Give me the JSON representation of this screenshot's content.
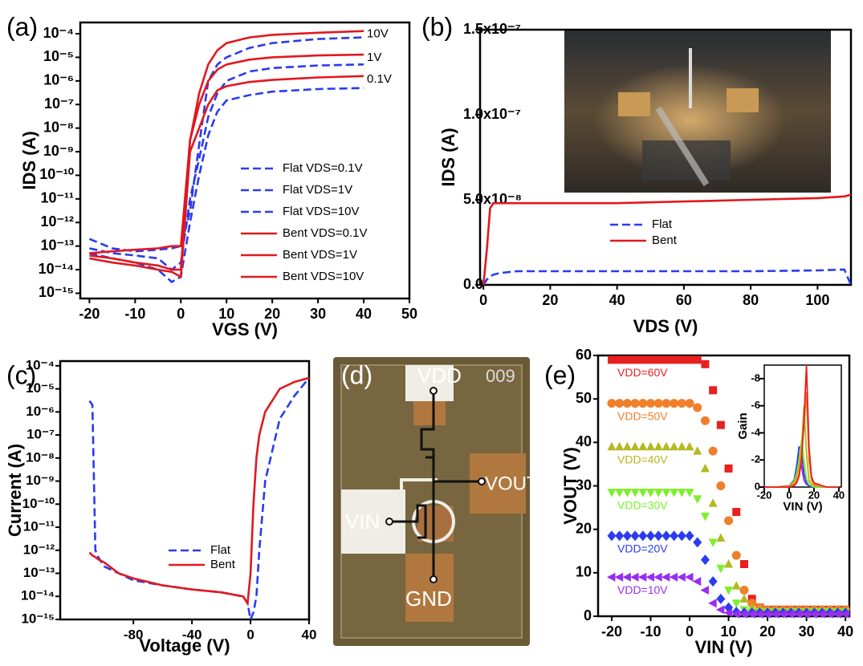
{
  "chart_data": [
    {
      "panel": "(a)",
      "type": "line",
      "x_label": "VGS (V)",
      "y_label": "IDS (A)",
      "log_y": true,
      "xlim": [
        -22,
        50
      ],
      "ylim": [
        6e-16,
        0.0003
      ],
      "xticks": [
        -20,
        -10,
        0,
        10,
        20,
        30,
        40,
        50
      ],
      "yticks": [
        {
          "value": 1e-15,
          "label": "10⁻¹⁵"
        },
        {
          "value": 1e-14,
          "label": "10⁻¹⁴"
        },
        {
          "value": 1e-13,
          "label": "10⁻¹³"
        },
        {
          "value": 1e-12,
          "label": "10⁻¹²"
        },
        {
          "value": 1e-11,
          "label": "10⁻¹¹"
        },
        {
          "value": 1e-10,
          "label": "10⁻¹⁰"
        },
        {
          "value": 1e-09,
          "label": "10⁻⁹"
        },
        {
          "value": 1e-08,
          "label": "10⁻⁸"
        },
        {
          "value": 1e-07,
          "label": "10⁻⁷"
        },
        {
          "value": 1e-06,
          "label": "10⁻⁶"
        },
        {
          "value": 1e-05,
          "label": "10⁻⁵"
        },
        {
          "value": 0.0001,
          "label": "10⁻⁴"
        }
      ],
      "x": [
        -20,
        -15,
        -10,
        -5,
        -2,
        0,
        2,
        4,
        6,
        8,
        10,
        15,
        20,
        30,
        40
      ],
      "series": [
        {
          "name": "Flat VDS=0.1V",
          "color": "#2a3bf0",
          "line_style": "dashed",
          "values": [
            5e-14,
            3e-14,
            2e-14,
            1e-14,
            3e-15,
            5e-15,
            1e-12,
            1e-10,
            5e-09,
            5e-08,
            1.5e-07,
            2.5e-07,
            3.5e-07,
            4.5e-07,
            5e-07
          ]
        },
        {
          "name": "Flat VDS=1V",
          "color": "#2a3bf0",
          "line_style": "dashed",
          "values": [
            8e-14,
            5e-14,
            4e-14,
            3e-14,
            1e-14,
            2e-14,
            1e-11,
            5e-10,
            3e-08,
            3e-07,
            1e-06,
            2.5e-06,
            3.5e-06,
            4.5e-06,
            5e-06
          ]
        },
        {
          "name": "Flat VDS=10V",
          "color": "#2a3bf0",
          "line_style": "dashed",
          "values": [
            2e-13,
            8e-14,
            6e-14,
            7e-14,
            8e-14,
            1e-13,
            3e-12,
            2e-09,
            1e-06,
            5e-06,
            1e-05,
            2.5e-05,
            4e-05,
            6e-05,
            7e-05
          ]
        },
        {
          "name": "Bent VDS=0.1V",
          "color": "#e0191f",
          "line_style": "solid",
          "values": [
            3e-14,
            2e-14,
            1.5e-14,
            1e-14,
            8e-15,
            5e-15,
            1e-09,
            1e-08,
            1e-07,
            4e-07,
            6e-07,
            9e-07,
            1.1e-06,
            1.4e-06,
            1.6e-06
          ]
        },
        {
          "name": "Bent VDS=1V",
          "color": "#e0191f",
          "line_style": "solid",
          "values": [
            4e-14,
            3e-14,
            2e-14,
            1.5e-14,
            1e-14,
            1e-14,
            3e-09,
            1e-07,
            1e-06,
            3e-06,
            5e-06,
            8e-06,
            1e-05,
            1.2e-05,
            1.3e-05
          ]
        },
        {
          "name": "Bent VDS=10V",
          "color": "#e0191f",
          "line_style": "solid",
          "values": [
            5e-14,
            6e-14,
            7e-14,
            8e-14,
            1e-13,
            1e-13,
            3e-09,
            3e-07,
            5e-06,
            2e-05,
            4e-05,
            7e-05,
            9e-05,
            0.00011,
            0.00013
          ]
        }
      ],
      "annotations": [
        "10V",
        "1V",
        "0.1V"
      ]
    },
    {
      "panel": "(b)",
      "type": "line",
      "x_label": "VDS (V)",
      "y_label": "IDS (A)",
      "log_y": false,
      "xlim": [
        -1,
        110
      ],
      "ylim": [
        0,
        1.5e-07
      ],
      "xticks": [
        0,
        20,
        40,
        60,
        80,
        100
      ],
      "yticks": [
        {
          "value": 0,
          "label": "0.0"
        },
        {
          "value": 5e-08,
          "label": "5.0x10⁻⁸"
        },
        {
          "value": 1e-07,
          "label": "1.0x10⁻⁷"
        },
        {
          "value": 1.5e-07,
          "label": "1.5x10⁻⁷"
        }
      ],
      "x": [
        0,
        1,
        2,
        3,
        5,
        10,
        20,
        40,
        60,
        80,
        100,
        108,
        110
      ],
      "series": [
        {
          "name": "Flat",
          "color": "#2a3bf0",
          "line_style": "dashed",
          "values": [
            0,
            3e-09,
            5e-09,
            6e-09,
            7e-09,
            8e-09,
            8e-09,
            8e-09,
            8e-09,
            8e-09,
            8.5e-09,
            9e-09,
            0
          ]
        },
        {
          "name": "Bent",
          "color": "#e0191f",
          "line_style": "solid",
          "values": [
            0,
            2e-08,
            4.5e-08,
            4.8e-08,
            4.8e-08,
            4.8e-08,
            4.8e-08,
            4.8e-08,
            4.9e-08,
            5e-08,
            5.1e-08,
            5.2e-08,
            5.3e-08
          ]
        }
      ]
    },
    {
      "panel": "(c)",
      "type": "line",
      "x_label": "Voltage (V)",
      "y_label": "Current (A)",
      "log_y": true,
      "xlim": [
        -130,
        40
      ],
      "ylim": [
        1e-15,
        0.00016
      ],
      "xticks": [
        -80,
        -40,
        0,
        40
      ],
      "yticks": [
        {
          "value": 1e-15,
          "label": "10⁻¹⁵"
        },
        {
          "value": 1e-14,
          "label": "10⁻¹⁴"
        },
        {
          "value": 1e-13,
          "label": "10⁻¹³"
        },
        {
          "value": 1e-12,
          "label": "10⁻¹²"
        },
        {
          "value": 1e-11,
          "label": "10⁻¹¹"
        },
        {
          "value": 1e-10,
          "label": "10⁻¹⁰"
        },
        {
          "value": 1e-09,
          "label": "10⁻⁹"
        },
        {
          "value": 1e-08,
          "label": "10⁻⁸"
        },
        {
          "value": 1e-07,
          "label": "10⁻⁷"
        },
        {
          "value": 1e-06,
          "label": "10⁻⁶"
        },
        {
          "value": 1e-05,
          "label": "10⁻⁵"
        },
        {
          "value": 0.0001,
          "label": "10⁻⁴"
        }
      ],
      "x": [
        -110,
        -108,
        -106,
        -104,
        -100,
        -90,
        -80,
        -60,
        -40,
        -20,
        -5,
        -2,
        0,
        2,
        4,
        6,
        10,
        20,
        30,
        40
      ],
      "series": [
        {
          "name": "Flat",
          "color": "#2a3bf0",
          "line_style": "dashed",
          "values": [
            3e-06,
            2e-06,
            1e-12,
            5e-13,
            2e-13,
            1e-13,
            5e-14,
            3e-14,
            2e-14,
            1.5e-14,
            1e-14,
            5e-15,
            1e-15,
            2e-15,
            1e-14,
            1e-12,
            1e-09,
            5e-07,
            5e-06,
            3e-05
          ]
        },
        {
          "name": "Bent",
          "color": "#e0191f",
          "line_style": "solid",
          "values": [
            8e-13,
            6e-13,
            5e-13,
            4e-13,
            3e-13,
            1e-13,
            6e-14,
            3e-14,
            2e-14,
            1.5e-14,
            1e-14,
            5e-15,
            1e-13,
            1e-10,
            1e-08,
            1e-07,
            1e-06,
            1e-05,
            2e-05,
            3e-05
          ]
        }
      ]
    },
    {
      "panel": "(e)",
      "type": "scatter",
      "x_label": "VIN (V)",
      "y_label": "VOUT (V)",
      "log_y": false,
      "xlim": [
        -23.5,
        41
      ],
      "ylim": [
        0,
        60
      ],
      "xticks": [
        -20,
        -10,
        0,
        10,
        20,
        30,
        40
      ],
      "yticks": [
        0,
        10,
        20,
        30,
        40,
        50,
        60
      ],
      "x": [
        -20,
        -18,
        -16,
        -14,
        -12,
        -10,
        -8,
        -6,
        -4,
        -2,
        0,
        2,
        4,
        6,
        8,
        10,
        12,
        14,
        16,
        18,
        20,
        22,
        24,
        26,
        28,
        30,
        32,
        34,
        36,
        38,
        40
      ],
      "series": [
        {
          "name": "VDD=60V",
          "color": "#e8201e",
          "marker": "square",
          "values": [
            59,
            59,
            59,
            59,
            59,
            59,
            59,
            59,
            59,
            59,
            59,
            59,
            58,
            52,
            44,
            34,
            24,
            12,
            4,
            2,
            1.5,
            1.5,
            1.5,
            1.5,
            1.5,
            1.5,
            1.5,
            1.5,
            1.5,
            1.5,
            1.5
          ]
        },
        {
          "name": "VDD=50V",
          "color": "#f07f2a",
          "marker": "circle",
          "values": [
            49,
            49,
            49,
            49,
            49,
            49,
            49,
            49,
            49,
            49,
            49,
            48,
            45,
            38,
            30,
            22,
            14,
            6,
            3,
            2,
            1.5,
            1.5,
            1.5,
            1.5,
            1.5,
            1.5,
            1.5,
            1.5,
            1.5,
            1.5,
            1.5
          ]
        },
        {
          "name": "VDD=40V",
          "color": "#b5b820",
          "marker": "triangle-up",
          "values": [
            39,
            39,
            39,
            39,
            39,
            39,
            39,
            39,
            39,
            39,
            39,
            38,
            34,
            26,
            18,
            12,
            7,
            4,
            2,
            1.5,
            1.2,
            1.2,
            1.2,
            1.2,
            1.2,
            1.2,
            1.2,
            1.2,
            1.2,
            1.2,
            1.2
          ]
        },
        {
          "name": "VDD=30V",
          "color": "#7cf02a",
          "marker": "triangle-down",
          "values": [
            28.5,
            28.5,
            28.5,
            28.5,
            28.5,
            28.5,
            28.5,
            28.5,
            28.5,
            28.5,
            28.5,
            27,
            23,
            17,
            11,
            6,
            3,
            1.5,
            1,
            1,
            1,
            1,
            1,
            1,
            1,
            1,
            1,
            1,
            1,
            1,
            1
          ]
        },
        {
          "name": "VDD=20V",
          "color": "#2b3cf0",
          "marker": "diamond",
          "values": [
            18.5,
            18.5,
            18.5,
            18.5,
            18.5,
            18.5,
            18.5,
            18.5,
            18.5,
            18.5,
            18.5,
            17,
            13,
            8,
            4,
            2,
            1,
            0.8,
            0.8,
            0.8,
            0.8,
            0.8,
            0.8,
            0.8,
            0.8,
            0.8,
            0.8,
            0.8,
            0.8,
            0.8,
            0.8
          ]
        },
        {
          "name": "VDD=10V",
          "color": "#9a2cf0",
          "marker": "triangle-left",
          "values": [
            9,
            9,
            9,
            9,
            9,
            9,
            9,
            9,
            9,
            9,
            9,
            8,
            6,
            3,
            1.5,
            0.8,
            0.5,
            0.5,
            0.5,
            0.5,
            0.5,
            0.5,
            0.5,
            0.5,
            0.5,
            0.5,
            0.5,
            0.5,
            0.5,
            0.5,
            0.5
          ]
        }
      ]
    },
    {
      "type": "line",
      "x_label": "VIN (V)",
      "y_label": "Gain",
      "log_y": false,
      "xlim": [
        -20,
        42
      ],
      "ylim": [
        0,
        -9
      ],
      "xticks": [
        -20,
        0,
        20,
        40
      ],
      "yticks": [
        -8,
        -6,
        -4,
        -2,
        0
      ],
      "x": [
        -20,
        -10,
        0,
        4,
        6,
        8,
        10,
        12,
        14,
        16,
        18,
        20,
        30,
        40
      ],
      "series": [
        {
          "color": "#9a2cf0",
          "line_style": "solid",
          "values": [
            0,
            0,
            -0.1,
            -0.5,
            -1.5,
            -2.5,
            -1.5,
            -0.5,
            -0.2,
            -0.1,
            0,
            0,
            0,
            0
          ]
        },
        {
          "color": "#2b3cf0",
          "line_style": "solid",
          "values": [
            0,
            0,
            -0.1,
            -0.5,
            -1.5,
            -3,
            -2.5,
            -1,
            -0.3,
            -0.1,
            0,
            0,
            0,
            0
          ]
        },
        {
          "color": "#7cf02a",
          "line_style": "solid",
          "values": [
            0,
            0,
            -0.1,
            -0.4,
            -1,
            -2,
            -3.5,
            -2,
            -0.6,
            -0.2,
            -0.1,
            0,
            0,
            0
          ]
        },
        {
          "color": "#b5b820",
          "line_style": "solid",
          "values": [
            0,
            0,
            -0.1,
            -0.3,
            -0.8,
            -1.5,
            -3,
            -6,
            -2.5,
            -0.5,
            -0.2,
            -0.1,
            0,
            0
          ]
        },
        {
          "color": "#f07f2a",
          "line_style": "solid",
          "values": [
            0,
            0,
            -0.1,
            -0.2,
            -0.5,
            -1,
            -2.5,
            -4.5,
            -7,
            -2,
            -0.5,
            -0.2,
            0,
            0
          ]
        },
        {
          "color": "#e8201e",
          "line_style": "solid",
          "values": [
            0,
            0,
            0,
            -0.1,
            -0.3,
            -0.8,
            -2,
            -5,
            -9,
            -3,
            -0.8,
            -0.3,
            0,
            0
          ]
        }
      ]
    }
  ],
  "micrograph": {
    "panel": "(d)",
    "chip_id": "009",
    "vdd": "VDD",
    "vout": "VOUT",
    "vin": "VIN",
    "gnd": "GND"
  }
}
